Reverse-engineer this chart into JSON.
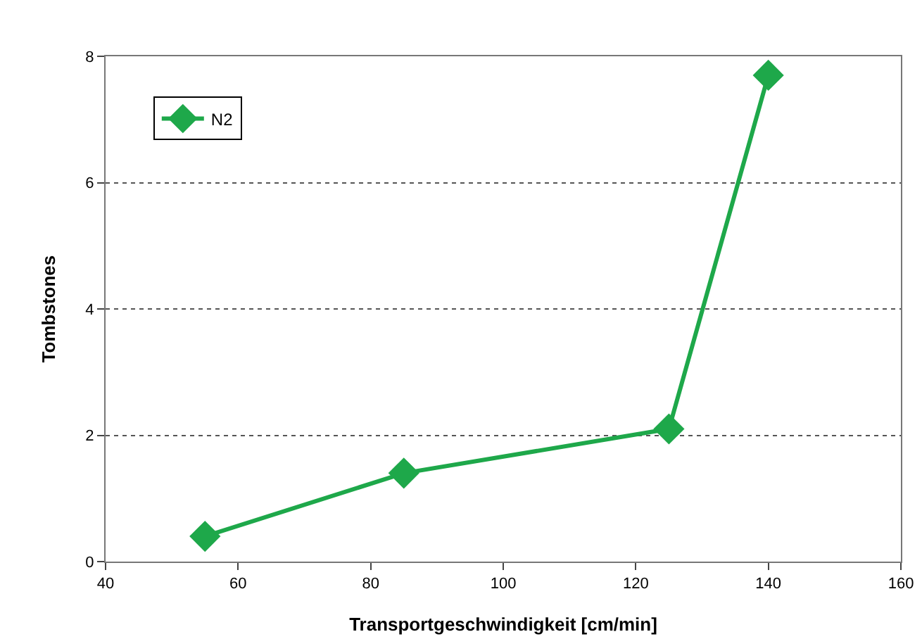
{
  "chart_data": {
    "type": "line",
    "xlabel": "Transportgeschwindigkeit [cm/min]",
    "ylabel": "Tombstones",
    "x": [
      55,
      85,
      125,
      140
    ],
    "series": [
      {
        "name": "N2",
        "color": "#1ea84a",
        "values": [
          0.4,
          1.4,
          2.1,
          7.7
        ]
      }
    ],
    "xlim": [
      40,
      160
    ],
    "xticks": [
      40,
      60,
      80,
      100,
      120,
      140,
      160
    ],
    "ylim": [
      0,
      8
    ],
    "yticks": [
      0,
      2,
      4,
      6,
      8
    ],
    "grid": "y",
    "legend": "top left",
    "marker": "diamond",
    "line_style": "solid"
  }
}
